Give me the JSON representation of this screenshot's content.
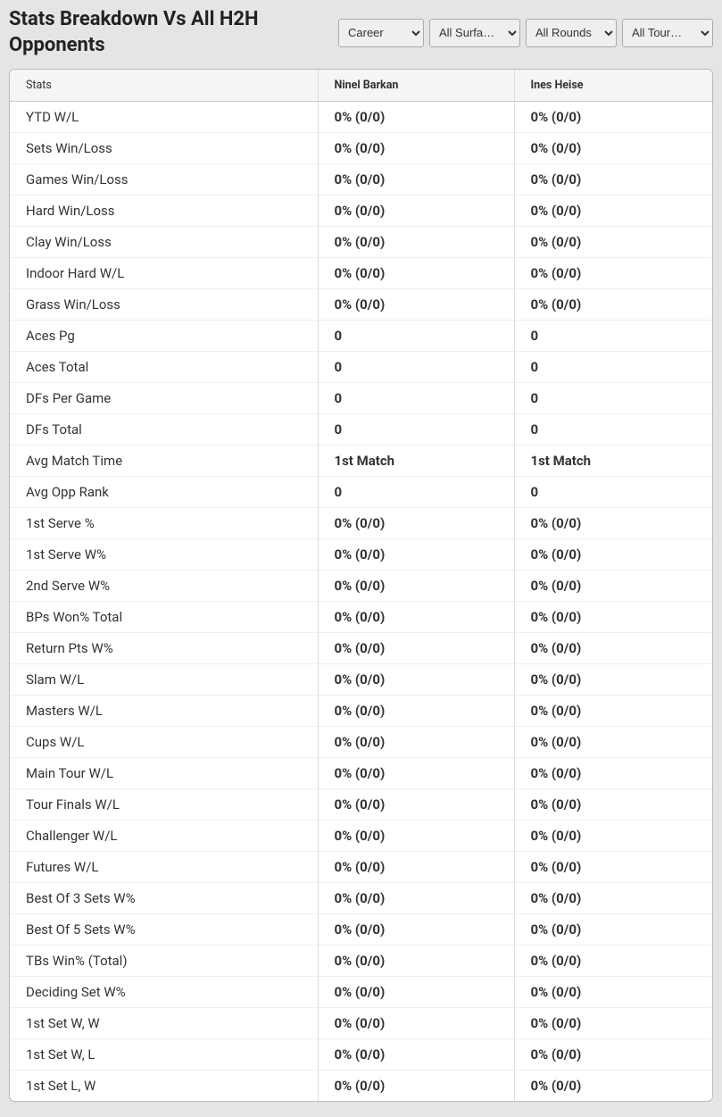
{
  "header": {
    "title": "Stats Breakdown Vs All H2H Opponents",
    "filters": {
      "career": "Career",
      "surface": "All Surfa…",
      "rounds": "All Rounds",
      "tour": "All Tour…"
    }
  },
  "table": {
    "columns": {
      "stats": "Stats",
      "player1": "Ninel Barkan",
      "player2": "Ines Heise"
    },
    "rows": [
      {
        "stat": "YTD W/L",
        "p1": "0% (0/0)",
        "p2": "0% (0/0)"
      },
      {
        "stat": "Sets Win/Loss",
        "p1": "0% (0/0)",
        "p2": "0% (0/0)"
      },
      {
        "stat": "Games Win/Loss",
        "p1": "0% (0/0)",
        "p2": "0% (0/0)"
      },
      {
        "stat": "Hard Win/Loss",
        "p1": "0% (0/0)",
        "p2": "0% (0/0)"
      },
      {
        "stat": "Clay Win/Loss",
        "p1": "0% (0/0)",
        "p2": "0% (0/0)"
      },
      {
        "stat": "Indoor Hard W/L",
        "p1": "0% (0/0)",
        "p2": "0% (0/0)"
      },
      {
        "stat": "Grass Win/Loss",
        "p1": "0% (0/0)",
        "p2": "0% (0/0)"
      },
      {
        "stat": "Aces Pg",
        "p1": "0",
        "p2": "0"
      },
      {
        "stat": "Aces Total",
        "p1": "0",
        "p2": "0"
      },
      {
        "stat": "DFs Per Game",
        "p1": "0",
        "p2": "0"
      },
      {
        "stat": "DFs Total",
        "p1": "0",
        "p2": "0"
      },
      {
        "stat": "Avg Match Time",
        "p1": "1st Match",
        "p2": "1st Match"
      },
      {
        "stat": "Avg Opp Rank",
        "p1": "0",
        "p2": "0"
      },
      {
        "stat": "1st Serve %",
        "p1": "0% (0/0)",
        "p2": "0% (0/0)"
      },
      {
        "stat": "1st Serve W%",
        "p1": "0% (0/0)",
        "p2": "0% (0/0)"
      },
      {
        "stat": "2nd Serve W%",
        "p1": "0% (0/0)",
        "p2": "0% (0/0)"
      },
      {
        "stat": "BPs Won% Total",
        "p1": "0% (0/0)",
        "p2": "0% (0/0)"
      },
      {
        "stat": "Return Pts W%",
        "p1": "0% (0/0)",
        "p2": "0% (0/0)"
      },
      {
        "stat": "Slam W/L",
        "p1": "0% (0/0)",
        "p2": "0% (0/0)"
      },
      {
        "stat": "Masters W/L",
        "p1": "0% (0/0)",
        "p2": "0% (0/0)"
      },
      {
        "stat": "Cups W/L",
        "p1": "0% (0/0)",
        "p2": "0% (0/0)"
      },
      {
        "stat": "Main Tour W/L",
        "p1": "0% (0/0)",
        "p2": "0% (0/0)"
      },
      {
        "stat": "Tour Finals W/L",
        "p1": "0% (0/0)",
        "p2": "0% (0/0)"
      },
      {
        "stat": "Challenger W/L",
        "p1": "0% (0/0)",
        "p2": "0% (0/0)"
      },
      {
        "stat": "Futures W/L",
        "p1": "0% (0/0)",
        "p2": "0% (0/0)"
      },
      {
        "stat": "Best Of 3 Sets W%",
        "p1": "0% (0/0)",
        "p2": "0% (0/0)"
      },
      {
        "stat": "Best Of 5 Sets W%",
        "p1": "0% (0/0)",
        "p2": "0% (0/0)"
      },
      {
        "stat": "TBs Win% (Total)",
        "p1": "0% (0/0)",
        "p2": "0% (0/0)"
      },
      {
        "stat": "Deciding Set W%",
        "p1": "0% (0/0)",
        "p2": "0% (0/0)"
      },
      {
        "stat": "1st Set W, W",
        "p1": "0% (0/0)",
        "p2": "0% (0/0)"
      },
      {
        "stat": "1st Set W, L",
        "p1": "0% (0/0)",
        "p2": "0% (0/0)"
      },
      {
        "stat": "1st Set L, W",
        "p1": "0% (0/0)",
        "p2": "0% (0/0)"
      }
    ]
  }
}
